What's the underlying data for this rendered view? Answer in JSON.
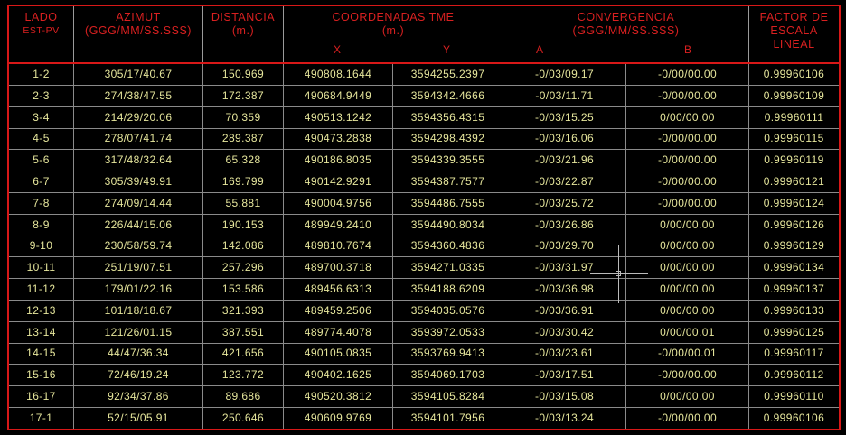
{
  "colors": {
    "header_text": "#d82020",
    "border": "#d81818",
    "cell_text": "#e6e69c",
    "grid": "#8a8a8a",
    "background": "#000000"
  },
  "header": {
    "lado": "LADO",
    "est_pv": "EST-PV",
    "azimut": "AZIMUT",
    "azimut_unit": "(GGG/MM/SS.SSS)",
    "distancia": "DISTANCIA",
    "distancia_unit": "(m.)",
    "coordenadas": "COORDENADAS TME",
    "coordenadas_unit": "(m.)",
    "x": "X",
    "y": "Y",
    "convergencia": "CONVERGENCIA",
    "convergencia_unit": "(GGG/MM/SS.SSS)",
    "a": "A",
    "b": "B",
    "factor_1": "FACTOR  DE",
    "factor_2": "ESCALA",
    "factor_3": "LINEAL"
  },
  "rows": [
    [
      "1-2",
      "305/17/40.67",
      "150.969",
      "490808.1644",
      "3594255.2397",
      "-0/03/09.17",
      "-0/00/00.00",
      "0.99960106"
    ],
    [
      "2-3",
      "274/38/47.55",
      "172.387",
      "490684.9449",
      "3594342.4666",
      "-0/03/11.71",
      "-0/00/00.00",
      "0.99960109"
    ],
    [
      "3-4",
      "214/29/20.06",
      "70.359",
      "490513.1242",
      "3594356.4315",
      "-0/03/15.25",
      "0/00/00.00",
      "0.99960111"
    ],
    [
      "4-5",
      "278/07/41.74",
      "289.387",
      "490473.2838",
      "3594298.4392",
      "-0/03/16.06",
      "-0/00/00.00",
      "0.99960115"
    ],
    [
      "5-6",
      "317/48/32.64",
      "65.328",
      "490186.8035",
      "3594339.3555",
      "-0/03/21.96",
      "-0/00/00.00",
      "0.99960119"
    ],
    [
      "6-7",
      "305/39/49.91",
      "169.799",
      "490142.9291",
      "3594387.7577",
      "-0/03/22.87",
      "-0/00/00.00",
      "0.99960121"
    ],
    [
      "7-8",
      "274/09/14.44",
      "55.881",
      "490004.9756",
      "3594486.7555",
      "-0/03/25.72",
      "-0/00/00.00",
      "0.99960124"
    ],
    [
      "8-9",
      "226/44/15.06",
      "190.153",
      "489949.2410",
      "3594490.8034",
      "-0/03/26.86",
      "0/00/00.00",
      "0.99960126"
    ],
    [
      "9-10",
      "230/58/59.74",
      "142.086",
      "489810.7674",
      "3594360.4836",
      "-0/03/29.70",
      "0/00/00.00",
      "0.99960129"
    ],
    [
      "10-11",
      "251/19/07.51",
      "257.296",
      "489700.3718",
      "3594271.0335",
      "-0/03/31.97",
      "0/00/00.00",
      "0.99960134"
    ],
    [
      "11-12",
      "179/01/22.16",
      "153.586",
      "489456.6313",
      "3594188.6209",
      "-0/03/36.98",
      "0/00/00.00",
      "0.99960137"
    ],
    [
      "12-13",
      "101/18/18.67",
      "321.393",
      "489459.2506",
      "3594035.0576",
      "-0/03/36.91",
      "0/00/00.00",
      "0.99960133"
    ],
    [
      "13-14",
      "121/26/01.15",
      "387.551",
      "489774.4078",
      "3593972.0533",
      "-0/03/30.42",
      "0/00/00.01",
      "0.99960125"
    ],
    [
      "14-15",
      "44/47/36.34",
      "421.656",
      "490105.0835",
      "3593769.9413",
      "-0/03/23.61",
      "-0/00/00.01",
      "0.99960117"
    ],
    [
      "15-16",
      "72/46/19.24",
      "123.772",
      "490402.1625",
      "3594069.1703",
      "-0/03/17.51",
      "-0/00/00.00",
      "0.99960112"
    ],
    [
      "16-17",
      "92/34/37.86",
      "89.686",
      "490520.3812",
      "3594105.8284",
      "-0/03/15.08",
      "0/00/00.00",
      "0.99960110"
    ],
    [
      "17-1",
      "52/15/05.91",
      "250.646",
      "490609.9769",
      "3594101.7956",
      "-0/03/13.24",
      "-0/00/00.00",
      "0.99960106"
    ]
  ]
}
